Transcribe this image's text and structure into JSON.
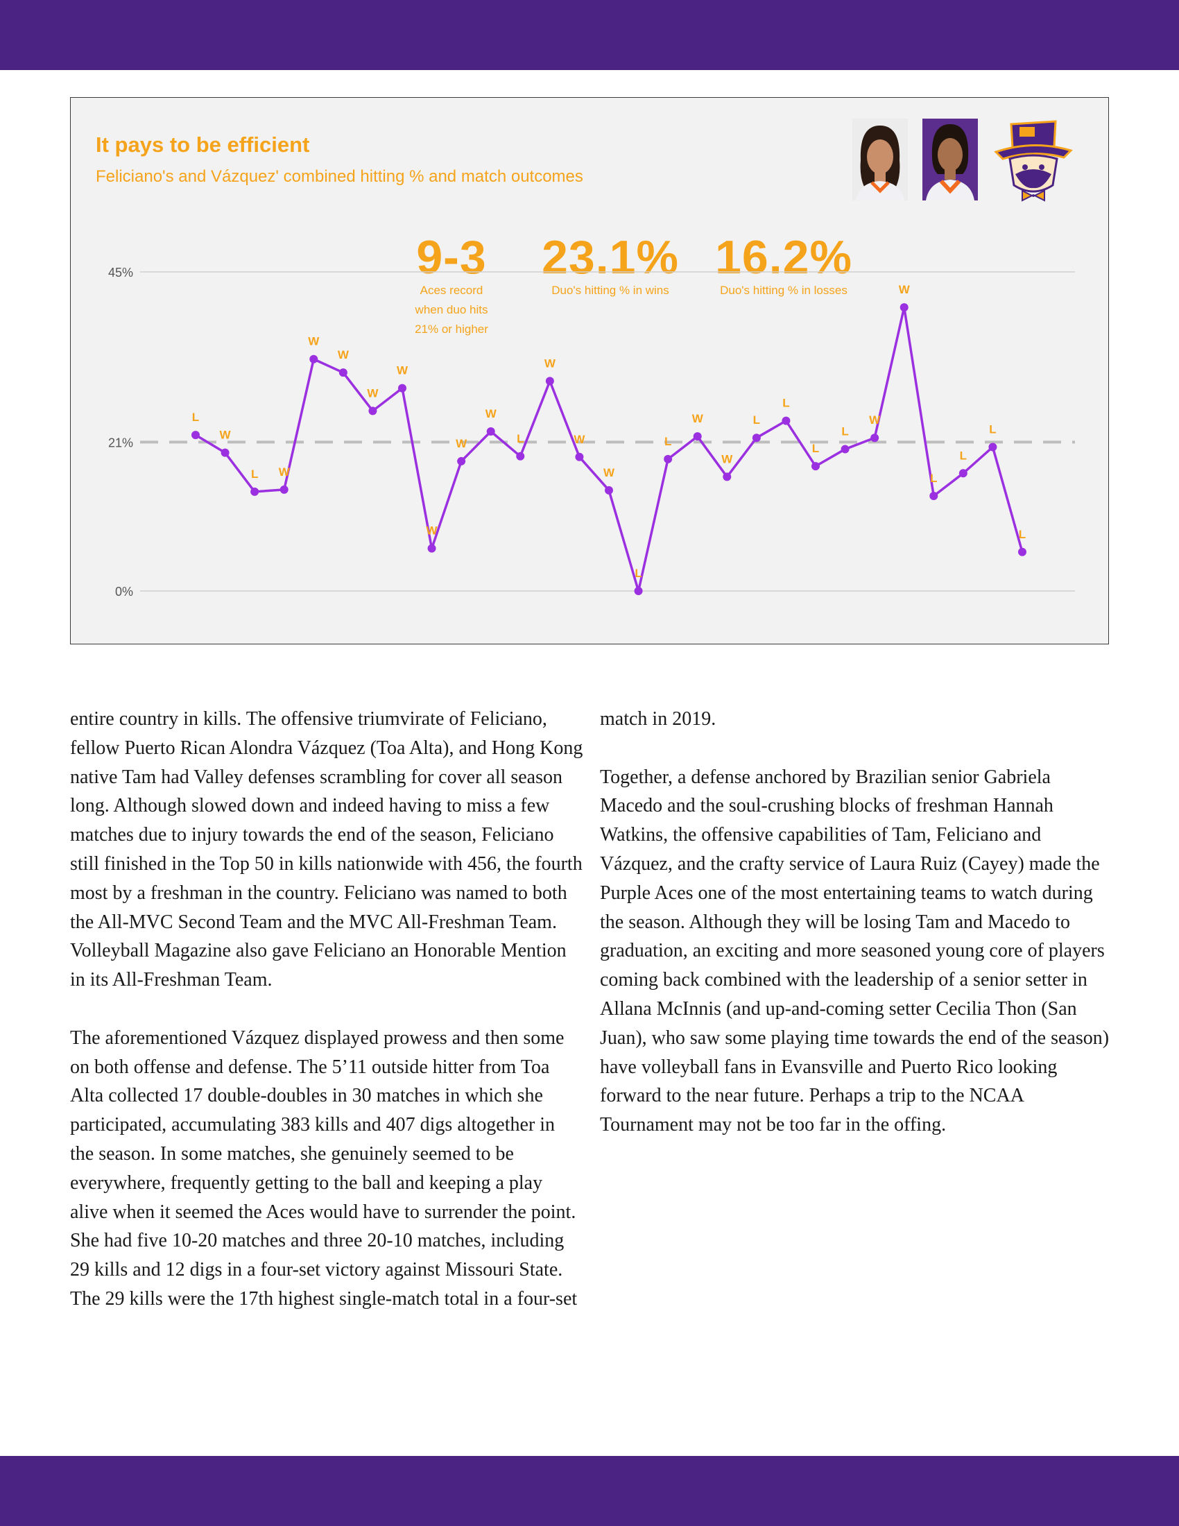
{
  "colors": {
    "band": "#4b2483",
    "accent": "#f5a31a",
    "line": "#9b30e0",
    "reference": "#bdbdbd"
  },
  "chart": {
    "title": "It pays to be efficient",
    "subtitle": "Feliciano's and Vázquez' combined hitting % and match outcomes",
    "images": [
      "player-photo-feliciano",
      "player-photo-vazquez",
      "purple-aces-logo"
    ],
    "stats": [
      {
        "value": "9-3",
        "caption": [
          "Aces record",
          "when duo hits",
          "21% or higher"
        ]
      },
      {
        "value": "23.1%",
        "caption": [
          "Duo's hitting % in wins"
        ]
      },
      {
        "value": "16.2%",
        "caption": [
          "Duo's hitting % in losses"
        ]
      }
    ]
  },
  "chart_data": {
    "type": "line",
    "y_ticks": [
      "45%",
      "21%",
      "0%"
    ],
    "ylim": [
      0,
      45
    ],
    "reference_line": 21,
    "grid": true,
    "series": [
      {
        "values": [
          22,
          19.5,
          14,
          14.3,
          32.7,
          30.8,
          25.4,
          28.6,
          6,
          18.3,
          22.5,
          19,
          29.6,
          18.9,
          14.2,
          0,
          18.6,
          21.8,
          16.1,
          21.6,
          24,
          17.6,
          20,
          21.6,
          40,
          13.4,
          16.6,
          20.3,
          5.5
        ],
        "outcomes": [
          "L",
          "W",
          "L",
          "W",
          "W",
          "W",
          "W",
          "W",
          "W",
          "W",
          "W",
          "L",
          "W",
          "W",
          "W",
          "L",
          "L",
          "W",
          "W",
          "L",
          "L",
          "L",
          "L",
          "W",
          "W",
          "L",
          "L",
          "L",
          "L"
        ]
      }
    ]
  },
  "article": {
    "left": [
      "entire country in kills. The offensive triumvirate of Feliciano, fellow Puerto Rican Alondra Vázquez (Toa Alta), and Hong Kong native Tam had Valley defenses scrambling for cover all season long. Although slowed down and indeed having to miss a few matches due to injury towards the end of the season, Feliciano still finished in the Top 50 in kills nationwide with 456, the fourth most by a freshman in the country. Feliciano was named to both the All-MVC Second Team and the MVC All-Freshman Team. Volleyball Magazine also gave Feliciano an Honorable Mention in its All-Freshman Team.",
      "The aforementioned Vázquez displayed prowess and then some on both offense and defense. The 5’11 outside hitter from Toa Alta collected 17 double-doubles in 30 matches in which she participated, accumulating 383 kills and 407 digs altogether in the season. In some matches, she genuinely seemed to be everywhere, frequently getting to the ball and keeping a play alive when it seemed the Aces would have to surrender the point. She had five 10-20 matches and three 20-10 matches, including 29 kills and 12 digs in a four-set victory against Missouri State. The 29 kills were the 17th highest single-match total in a four-set"
    ],
    "right": [
      "match in 2019.",
      "Together, a defense anchored by Brazilian senior Gabriela Macedo and the soul-crushing blocks of freshman Hannah Watkins, the offensive capabilities of Tam, Feliciano and Vázquez, and the crafty service of Laura Ruiz (Cayey) made the Purple Aces one of the most entertaining teams to watch during the season. Although they will be losing Tam and Macedo to graduation, an exciting and more seasoned young core of players coming back combined with the leadership of a senior setter in Allana McInnis (and up-and-coming setter Cecilia Thon (San Juan), who saw some playing time towards the end of the season) have volleyball fans in Evansville and Puerto Rico looking forward to the near future. Perhaps a trip to the NCAA Tournament may not be too far in the offing."
    ]
  }
}
